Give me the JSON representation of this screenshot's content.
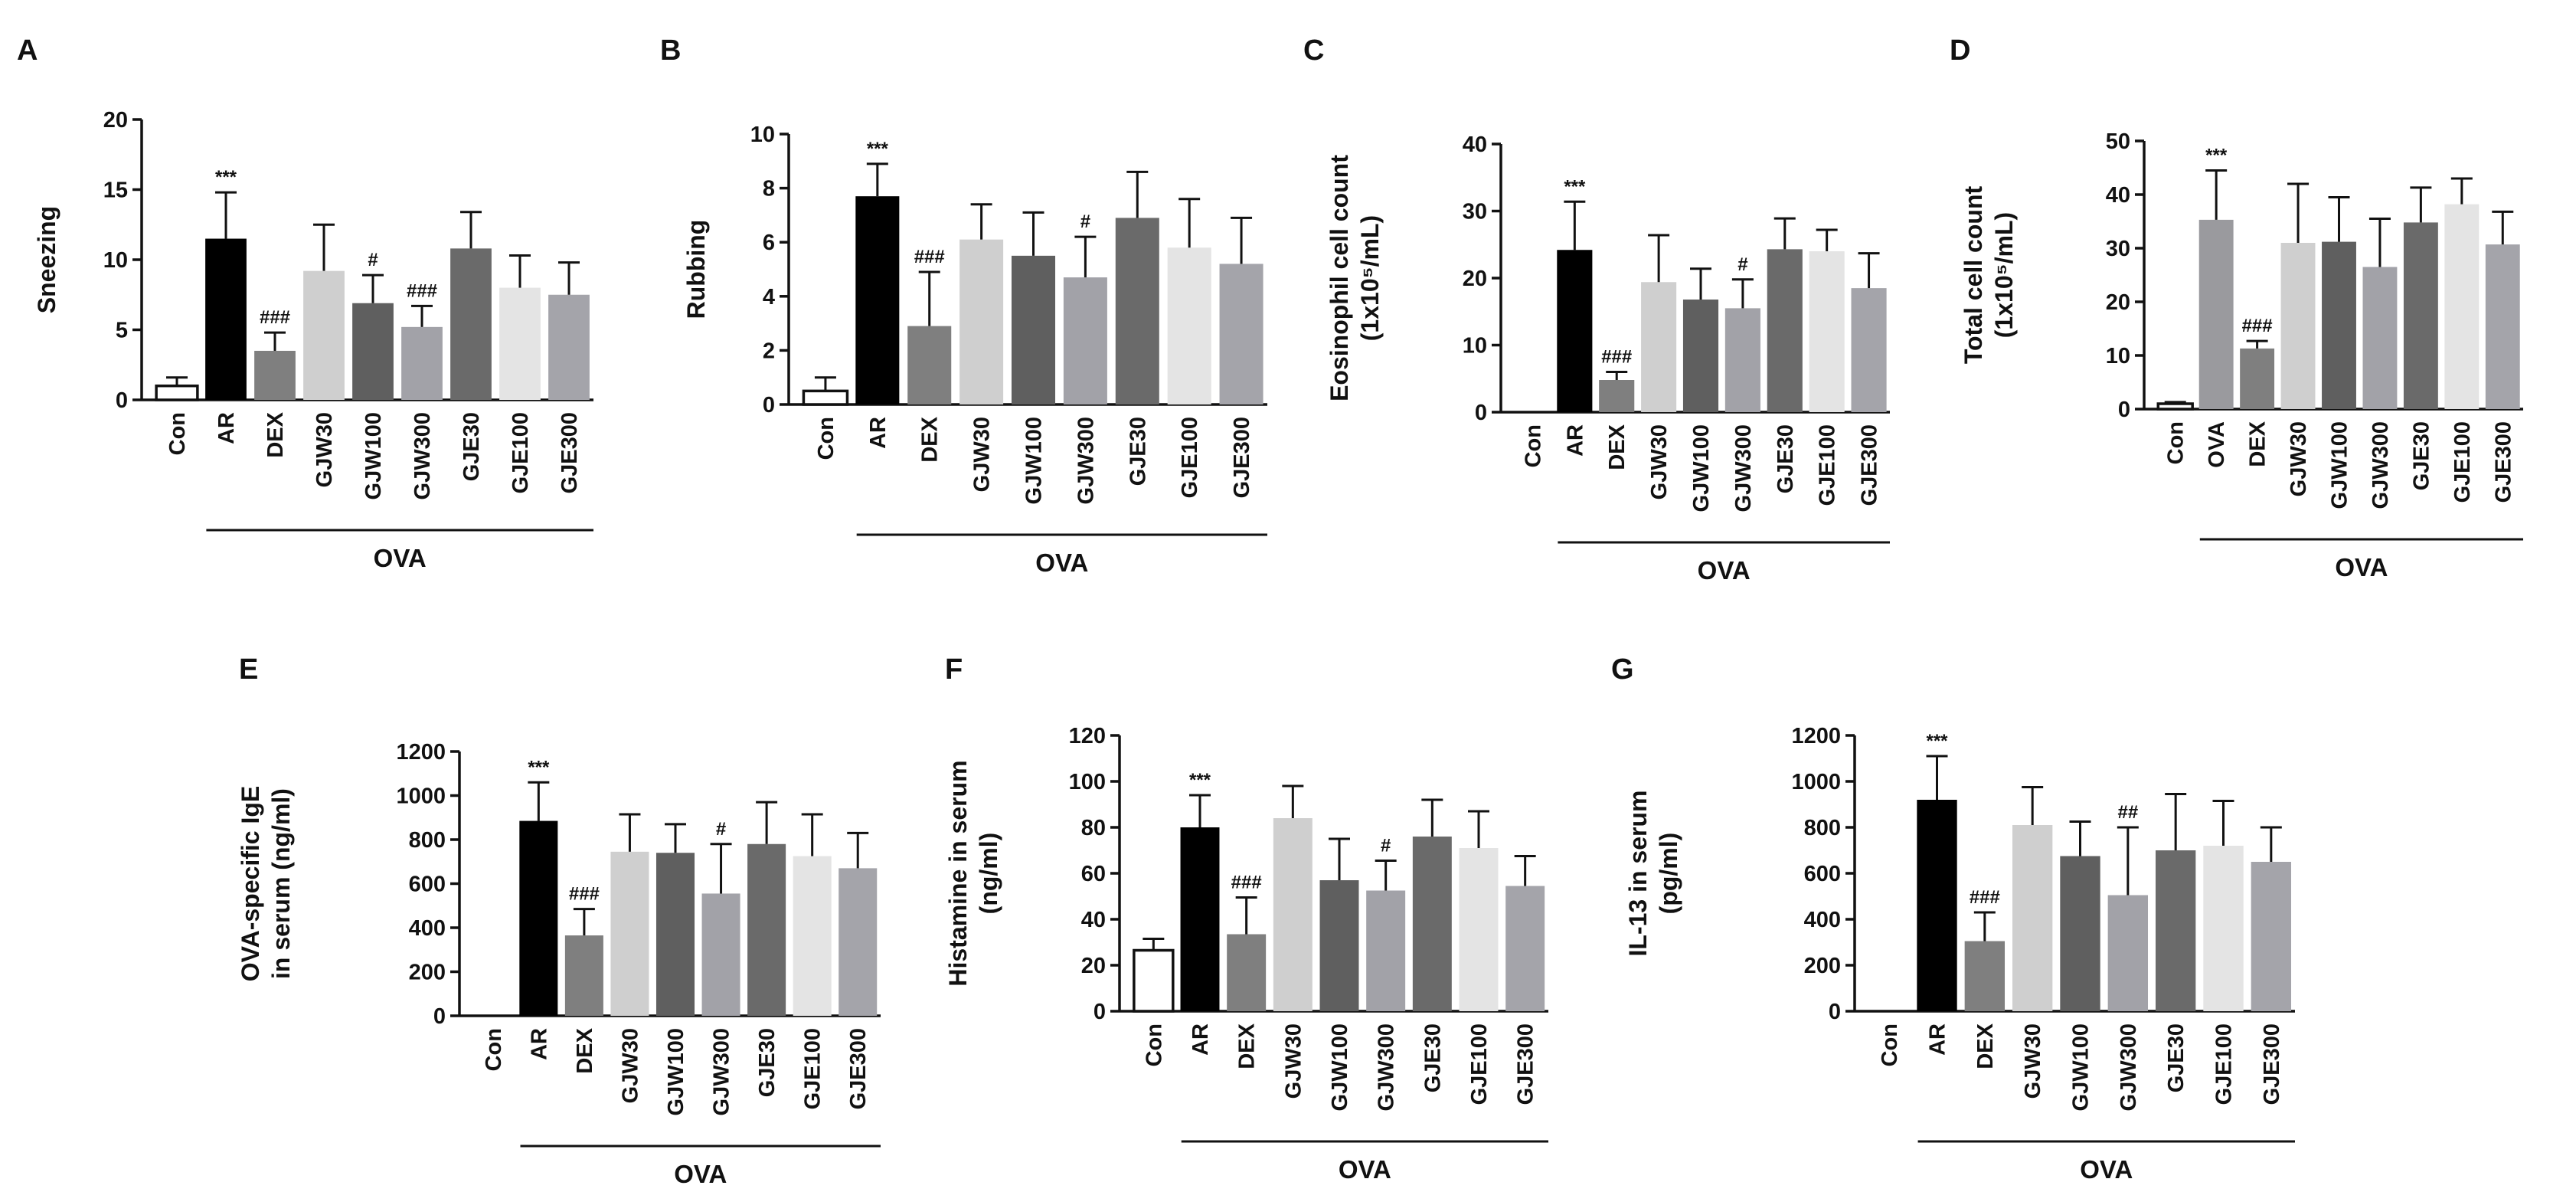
{
  "colors": {
    "Con": "#ffffff",
    "AR": "#000000",
    "OVA": "#9a9a9e",
    "DEX": "#7f7f7f",
    "GJW30": "#cfcfcf",
    "GJW100": "#5f5f5f",
    "GJW300": "#a2a2a8",
    "GJE30": "#6a6a6a",
    "GJE100": "#e4e4e4",
    "GJE300": "#a4a4aa"
  },
  "chart_data": [
    {
      "id": "A",
      "type": "bar",
      "panel_label": "A",
      "ylabel_lines": [
        "Sneezing"
      ],
      "ylim": [
        0,
        20
      ],
      "yticks": [
        0,
        5,
        10,
        15,
        20
      ],
      "categories": [
        "Con",
        "AR",
        "DEX",
        "GJW30",
        "GJW100",
        "GJW300",
        "GJE30",
        "GJE100",
        "GJE300"
      ],
      "values": [
        1,
        11.5,
        3.5,
        9.2,
        6.9,
        5.2,
        10.8,
        8.0,
        7.5
      ],
      "errors": [
        0.6,
        3.3,
        1.3,
        3.3,
        2.0,
        1.5,
        2.6,
        2.3,
        2.3
      ],
      "annotations": [
        "",
        "***",
        "###",
        "",
        "#",
        "###",
        "",
        "",
        ""
      ],
      "group_label": "OVA"
    },
    {
      "id": "B",
      "type": "bar",
      "panel_label": "B",
      "ylabel_lines": [
        "Rubbing"
      ],
      "ylim": [
        0,
        10
      ],
      "yticks": [
        0,
        2,
        4,
        6,
        8,
        10
      ],
      "categories": [
        "Con",
        "AR",
        "DEX",
        "GJW30",
        "GJW100",
        "GJW300",
        "GJE30",
        "GJE100",
        "GJE300"
      ],
      "values": [
        0.5,
        7.7,
        2.9,
        6.1,
        5.5,
        4.7,
        6.9,
        5.8,
        5.2
      ],
      "errors": [
        0.5,
        1.2,
        2.0,
        1.3,
        1.6,
        1.5,
        1.7,
        1.8,
        1.7
      ],
      "annotations": [
        "",
        "***",
        "###",
        "",
        "",
        "#",
        "",
        "",
        ""
      ],
      "group_label": "OVA"
    },
    {
      "id": "C",
      "type": "bar",
      "panel_label": "C",
      "ylabel_lines": [
        "Eosinophil cell count",
        "(1x10⁵/mL)"
      ],
      "ylim": [
        0,
        40
      ],
      "yticks": [
        0,
        10,
        20,
        30,
        40
      ],
      "categories": [
        "Con",
        "AR",
        "DEX",
        "GJW30",
        "GJW100",
        "GJW300",
        "GJE30",
        "GJE100",
        "GJE300"
      ],
      "values": [
        0,
        24.2,
        4.8,
        19.4,
        16.8,
        15.5,
        24.3,
        24.0,
        18.5
      ],
      "errors": [
        0,
        7.2,
        1.2,
        7.0,
        4.6,
        4.3,
        4.6,
        3.2,
        5.2
      ],
      "annotations": [
        "",
        "***",
        "###",
        "",
        "",
        "#",
        "",
        "",
        ""
      ],
      "group_label": "OVA"
    },
    {
      "id": "D",
      "type": "bar",
      "panel_label": "D",
      "ylabel_lines": [
        "Total cell count",
        "(1x10⁵/mL)"
      ],
      "ylim": [
        0,
        50
      ],
      "yticks": [
        0,
        10,
        20,
        30,
        40,
        50
      ],
      "categories": [
        "Con",
        "OVA",
        "DEX",
        "GJW30",
        "GJW100",
        "GJW300",
        "GJE30",
        "GJE100",
        "GJE300"
      ],
      "values": [
        1,
        35.3,
        11.3,
        31.0,
        31.2,
        26.5,
        34.8,
        38.2,
        30.7
      ],
      "errors": [
        0.3,
        9.2,
        1.4,
        11.0,
        8.3,
        9.0,
        6.5,
        4.8,
        6.1
      ],
      "annotations": [
        "",
        "***",
        "###",
        "",
        "",
        "",
        "",
        "",
        ""
      ],
      "group_label": "OVA"
    },
    {
      "id": "E",
      "type": "bar",
      "panel_label": "E",
      "ylabel_lines": [
        "OVA-specific IgE",
        "in serum (ng/ml)"
      ],
      "ylim": [
        0,
        1200
      ],
      "yticks": [
        0,
        200,
        400,
        600,
        800,
        1000,
        1200
      ],
      "categories": [
        "Con",
        "AR",
        "DEX",
        "GJW30",
        "GJW100",
        "GJW300",
        "GJE30",
        "GJE100",
        "GJE300"
      ],
      "values": [
        0,
        885,
        365,
        745,
        740,
        555,
        780,
        725,
        670
      ],
      "errors": [
        0,
        175,
        120,
        170,
        130,
        225,
        190,
        190,
        160
      ],
      "annotations": [
        "",
        "***",
        "###",
        "",
        "",
        "#",
        "",
        "",
        ""
      ],
      "group_label": "OVA"
    },
    {
      "id": "F",
      "type": "bar",
      "panel_label": "F",
      "ylabel_lines": [
        "Histamine in serum",
        "(ng/ml)"
      ],
      "ylim": [
        0,
        120
      ],
      "yticks": [
        0,
        20,
        40,
        60,
        80,
        100,
        120
      ],
      "categories": [
        "Con",
        "AR",
        "DEX",
        "GJW30",
        "GJW100",
        "GJW300",
        "GJE30",
        "GJE100",
        "GJE300"
      ],
      "values": [
        26.5,
        80,
        33.5,
        84,
        57,
        52.5,
        76,
        71,
        54.5
      ],
      "errors": [
        5,
        14,
        16,
        14,
        18,
        13,
        16,
        16,
        13
      ],
      "annotations": [
        "",
        "***",
        "###",
        "",
        "",
        "#",
        "",
        "",
        ""
      ],
      "group_label": "OVA"
    },
    {
      "id": "G",
      "type": "bar",
      "panel_label": "G",
      "ylabel_lines": [
        "IL-13 in serum",
        "(pg/ml)"
      ],
      "ylim": [
        0,
        1200
      ],
      "yticks": [
        0,
        200,
        400,
        600,
        800,
        1000,
        1200
      ],
      "categories": [
        "Con",
        "AR",
        "DEX",
        "GJW30",
        "GJW100",
        "GJW300",
        "GJE30",
        "GJE100",
        "GJE300"
      ],
      "values": [
        0,
        920,
        305,
        810,
        675,
        505,
        700,
        720,
        650
      ],
      "errors": [
        0,
        190,
        125,
        165,
        150,
        295,
        245,
        195,
        150
      ],
      "annotations": [
        "",
        "***",
        "###",
        "",
        "",
        "##",
        "",
        "",
        ""
      ],
      "group_label": "OVA"
    }
  ]
}
